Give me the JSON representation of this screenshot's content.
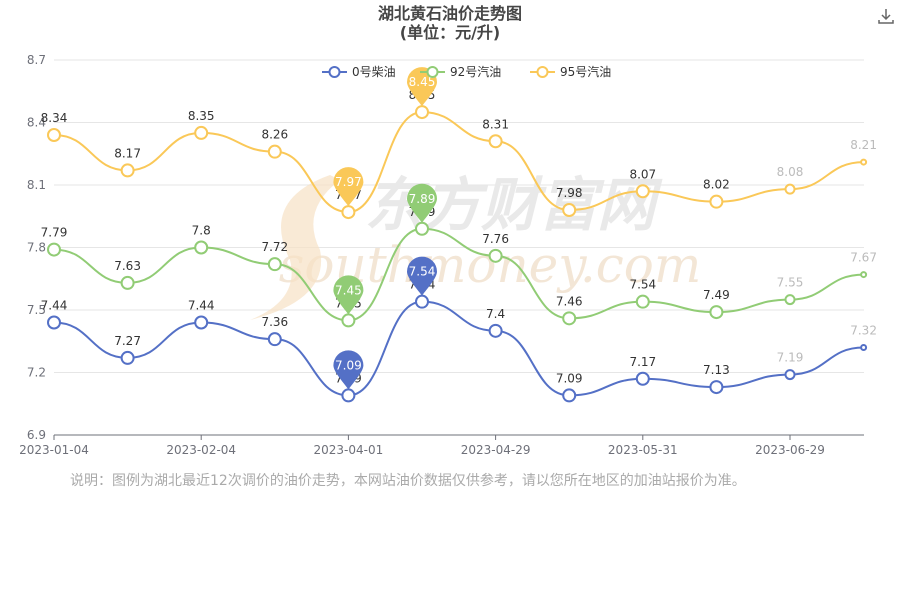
{
  "title": "湖北黄石油价走势图",
  "subtitle": "(单位：元/升)",
  "note": "说明：图例为湖北最近12次调价的油价走势，本网站油价数据仅供参考，请以您所在地区的加油站报价为准。",
  "watermark": {
    "cn": "东方财富网",
    "en": "southmoney.com"
  },
  "chart_data": {
    "type": "line",
    "y_axis": {
      "min": 6.9,
      "max": 8.7,
      "ticks": [
        "6.9",
        "7.2",
        "7.5",
        "7.8",
        "8.1",
        "8.4",
        "8.7"
      ]
    },
    "x_axis": {
      "tick_labels": [
        "2023-01-04",
        "2023-02-04",
        "2023-04-01",
        "2023-04-29",
        "2023-05-31",
        "2023-06-29"
      ],
      "tick_positions": [
        0,
        2,
        4,
        6,
        8,
        10
      ]
    },
    "grid": true,
    "legend_position": "top-center",
    "points_count": 12,
    "faded_points": [
      10,
      11
    ],
    "series": [
      {
        "name": "0号柴油",
        "color": "#5470c6",
        "values": [
          7.44,
          7.27,
          7.44,
          7.36,
          7.09,
          7.54,
          7.4,
          7.09,
          7.17,
          7.13,
          7.19,
          7.32
        ],
        "pin_labels": [
          "7.09",
          "7.54"
        ],
        "pins": [
          4,
          5
        ]
      },
      {
        "name": "92号汽油",
        "color": "#91cc75",
        "values": [
          7.79,
          7.63,
          7.8,
          7.72,
          7.45,
          7.89,
          7.76,
          7.46,
          7.54,
          7.49,
          7.55,
          7.67
        ],
        "pin_labels": [
          "7.45",
          "7.89"
        ],
        "pins": [
          4,
          5
        ]
      },
      {
        "name": "95号汽油",
        "color": "#fac858",
        "values": [
          8.34,
          8.17,
          8.35,
          8.26,
          7.97,
          8.45,
          8.31,
          7.98,
          8.07,
          8.02,
          8.08,
          8.21
        ],
        "pin_labels": [
          "7.97",
          "8.45"
        ],
        "pins": [
          4,
          5
        ]
      }
    ]
  }
}
